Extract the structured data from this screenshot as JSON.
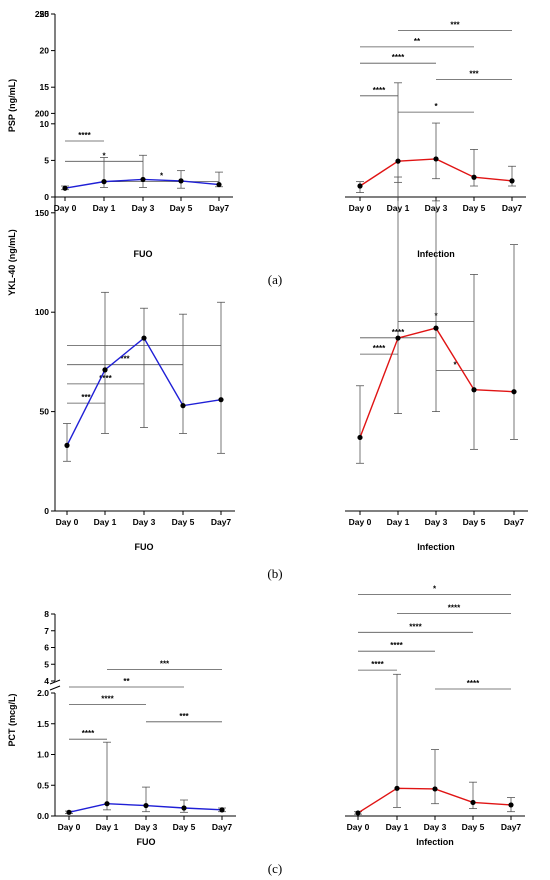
{
  "colors": {
    "fuo": "#1f1fd6",
    "infection": "#e01414",
    "axis": "#000000",
    "bracket": "#555555"
  },
  "panels": [
    {
      "caption": "(a)"
    },
    {
      "caption": "(b)"
    },
    {
      "caption": "(c)"
    }
  ],
  "chart_data": [
    {
      "type": "line",
      "panel": "a",
      "subplot": "FUO",
      "categories": [
        "Day 0",
        "Day 1",
        "Day 3",
        "Day 5",
        "Day7"
      ],
      "xlabel": "FUO",
      "ylabel": "PSP (ng/mL)",
      "ylim": [
        0,
        25
      ],
      "yticks": [
        0,
        5,
        10,
        15,
        20,
        25
      ],
      "color_key": "fuo",
      "values": [
        1.2,
        2.1,
        2.4,
        2.2,
        1.7
      ],
      "err_low": [
        1.0,
        1.3,
        1.3,
        1.2,
        1.4
      ],
      "err_high": [
        1.5,
        5.4,
        5.7,
        3.6,
        3.4
      ],
      "significance": [
        {
          "from": 0,
          "to": 1,
          "label": "****"
        },
        {
          "from": 0,
          "to": 2,
          "label": "*"
        },
        {
          "from": 1,
          "to": 4,
          "label": "*"
        }
      ]
    },
    {
      "type": "line",
      "panel": "a",
      "subplot": "Infection",
      "categories": [
        "Day 0",
        "Day 1",
        "Day 3",
        "Day 5",
        "Day7"
      ],
      "xlabel": "Infection",
      "ylabel": "",
      "ylim": [
        0,
        25
      ],
      "color_key": "infection",
      "values": [
        1.5,
        4.9,
        5.2,
        2.7,
        2.2
      ],
      "err_low": [
        0.6,
        2.0,
        2.5,
        1.5,
        1.5
      ],
      "err_high": [
        2.1,
        15.6,
        10.1,
        6.5,
        4.2
      ],
      "significance": [
        {
          "from": 1,
          "to": 4,
          "label": "***"
        },
        {
          "from": 0,
          "to": 3,
          "label": "**"
        },
        {
          "from": 0,
          "to": 2,
          "label": "****"
        },
        {
          "from": 2,
          "to": 4,
          "label": "***"
        },
        {
          "from": 0,
          "to": 1,
          "label": "****"
        },
        {
          "from": 1,
          "to": 3,
          "label": "*"
        }
      ]
    },
    {
      "type": "line",
      "panel": "b",
      "subplot": "FUO",
      "categories": [
        "Day 0",
        "Day 1",
        "Day 3",
        "Day 5",
        "Day7"
      ],
      "xlabel": "FUO",
      "ylabel": "YKL-40 (ng/mL)",
      "ylim": [
        0,
        250
      ],
      "yticks": [
        0,
        50,
        100,
        150,
        200,
        250
      ],
      "color_key": "fuo",
      "values": [
        33,
        71,
        87,
        53,
        56
      ],
      "err_low": [
        25,
        39,
        42,
        39,
        29
      ],
      "err_high": [
        44,
        110,
        102,
        99,
        105
      ],
      "significance": [
        {
          "from": 0,
          "to": 4,
          "label": "*"
        },
        {
          "from": 0,
          "to": 3,
          "label": "***"
        },
        {
          "from": 0,
          "to": 2,
          "label": "****"
        },
        {
          "from": 0,
          "to": 1,
          "label": "***"
        }
      ]
    },
    {
      "type": "line",
      "panel": "b",
      "subplot": "Infection",
      "categories": [
        "Day 0",
        "Day 1",
        "Day 3",
        "Day 5",
        "Day7"
      ],
      "xlabel": "Infection",
      "ylabel": "",
      "ylim": [
        0,
        250
      ],
      "color_key": "infection",
      "values": [
        37,
        87,
        92,
        61,
        60
      ],
      "err_low": [
        24,
        49,
        50,
        31,
        36
      ],
      "err_high": [
        63,
        168,
        156,
        119,
        134
      ],
      "significance": [
        {
          "from": 1,
          "to": 3,
          "label": "*"
        },
        {
          "from": 0,
          "to": 2,
          "label": "****"
        },
        {
          "from": 0,
          "to": 1,
          "label": "****"
        },
        {
          "from": 2,
          "to": 3,
          "label": "*"
        }
      ]
    },
    {
      "type": "line",
      "panel": "c",
      "subplot": "FUO",
      "categories": [
        "Day 0",
        "Day 1",
        "Day 3",
        "Day 5",
        "Day7"
      ],
      "xlabel": "FUO",
      "ylabel": "PCT (mcg/L)",
      "yaxis": "broken",
      "ylim_lower": [
        0,
        2.0
      ],
      "ylim_upper": [
        4,
        8
      ],
      "yticks_lower": [
        0.0,
        0.5,
        1.0,
        1.5,
        2.0
      ],
      "yticks_upper": [
        4,
        5,
        6,
        7,
        8
      ],
      "color_key": "fuo",
      "values": [
        0.06,
        0.2,
        0.17,
        0.13,
        0.1
      ],
      "err_low": [
        0.04,
        0.1,
        0.07,
        0.06,
        0.07
      ],
      "err_high": [
        0.08,
        1.2,
        0.47,
        0.26,
        0.13
      ],
      "significance": [
        {
          "from": 1,
          "to": 4,
          "label": "***"
        },
        {
          "from": 0,
          "to": 3,
          "label": "**"
        },
        {
          "from": 0,
          "to": 2,
          "label": "****"
        },
        {
          "from": 2,
          "to": 4,
          "label": "***"
        },
        {
          "from": 0,
          "to": 1,
          "label": "****"
        }
      ]
    },
    {
      "type": "line",
      "panel": "c",
      "subplot": "Infection",
      "categories": [
        "Day 0",
        "Day 1",
        "Day 3",
        "Day 5",
        "Day7"
      ],
      "xlabel": "Infection",
      "ylabel": "",
      "yaxis": "broken",
      "ylim_lower": [
        0,
        2.0
      ],
      "ylim_upper": [
        4,
        8
      ],
      "color_key": "infection",
      "values": [
        0.05,
        0.45,
        0.44,
        0.22,
        0.18
      ],
      "err_low": [
        0.03,
        0.14,
        0.2,
        0.12,
        0.07
      ],
      "err_high": [
        0.07,
        4.4,
        1.08,
        0.55,
        0.3
      ],
      "significance": [
        {
          "from": 0,
          "to": 4,
          "label": "*"
        },
        {
          "from": 1,
          "to": 4,
          "label": "****"
        },
        {
          "from": 0,
          "to": 3,
          "label": "****"
        },
        {
          "from": 0,
          "to": 2,
          "label": "****"
        },
        {
          "from": 0,
          "to": 1,
          "label": "****"
        },
        {
          "from": 2,
          "to": 4,
          "label": "****"
        }
      ]
    }
  ]
}
